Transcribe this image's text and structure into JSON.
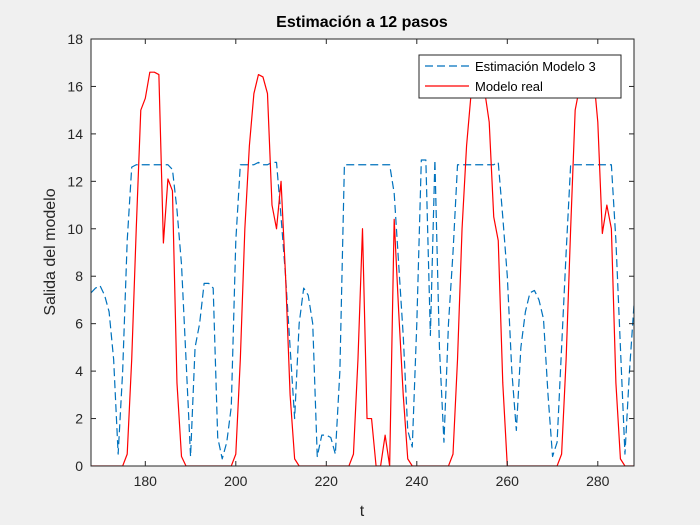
{
  "chart_data": {
    "type": "line",
    "title": "Estimación a 12 pasos",
    "xlabel": "t",
    "ylabel": "Salida del modelo",
    "xlim": [
      168,
      288
    ],
    "ylim": [
      0,
      18
    ],
    "xticks": [
      180,
      200,
      220,
      240,
      260,
      280
    ],
    "yticks": [
      0,
      2,
      4,
      6,
      8,
      10,
      12,
      14,
      16,
      18
    ],
    "grid": false,
    "legend_position": "top-right",
    "series": [
      {
        "name": "Estimación Modelo 3",
        "color": "#0072BD",
        "style": "dashed",
        "x": [
          168,
          169,
          170,
          171,
          172,
          173,
          174,
          175,
          176,
          177,
          178,
          179,
          180,
          181,
          182,
          183,
          184,
          185,
          186,
          187,
          188,
          189,
          190,
          191,
          192,
          193,
          194,
          195,
          196,
          197,
          198,
          199,
          200,
          201,
          202,
          203,
          204,
          205,
          206,
          207,
          208,
          209,
          210,
          211,
          212,
          213,
          214,
          215,
          216,
          217,
          218,
          219,
          220,
          221,
          222,
          223,
          224,
          225,
          226,
          227,
          228,
          229,
          230,
          231,
          232,
          233,
          234,
          235,
          236,
          237,
          238,
          239,
          240,
          241,
          242,
          243,
          244,
          245,
          246,
          247,
          248,
          249,
          250,
          251,
          252,
          253,
          254,
          255,
          256,
          257,
          258,
          259,
          260,
          261,
          262,
          263,
          264,
          265,
          266,
          267,
          268,
          269,
          270,
          271,
          272,
          273,
          274,
          275,
          276,
          277,
          278,
          279,
          280,
          281,
          282,
          283,
          284,
          285,
          286,
          287,
          288
        ],
        "y": [
          7.3,
          7.5,
          7.6,
          7.2,
          6.5,
          4.5,
          0.5,
          4.0,
          9.5,
          12.6,
          12.7,
          12.7,
          12.7,
          12.7,
          12.7,
          12.7,
          12.7,
          12.7,
          12.5,
          10.8,
          8.5,
          4.5,
          0.4,
          5.0,
          6.0,
          7.7,
          7.7,
          7.5,
          1.2,
          0.3,
          1.0,
          2.5,
          9.5,
          12.7,
          12.7,
          12.7,
          12.7,
          12.8,
          12.7,
          12.7,
          12.8,
          12.8,
          10.5,
          8.0,
          5.0,
          2.0,
          6.0,
          7.5,
          7.2,
          6.0,
          0.4,
          1.3,
          1.3,
          1.2,
          0.5,
          4.0,
          12.7,
          12.7,
          12.7,
          12.7,
          12.7,
          12.7,
          12.7,
          12.7,
          12.7,
          12.7,
          12.7,
          11.5,
          8.5,
          5.5,
          1.5,
          0.8,
          6.0,
          12.9,
          12.9,
          5.5,
          12.9,
          5.0,
          1.0,
          6.0,
          9.0,
          12.7,
          12.7,
          12.7,
          12.7,
          12.7,
          12.7,
          12.7,
          12.7,
          12.7,
          12.8,
          10.5,
          8.0,
          4.0,
          1.5,
          5.0,
          6.5,
          7.3,
          7.4,
          7.0,
          6.2,
          3.0,
          0.4,
          1.0,
          5.0,
          9.0,
          12.7,
          12.7,
          12.7,
          12.7,
          12.7,
          12.7,
          12.7,
          12.7,
          12.7,
          12.7,
          9.5,
          5.0,
          0.5,
          4.0,
          6.8
        ]
      },
      {
        "name": "Modelo real",
        "color": "#FF0000",
        "style": "solid",
        "x": [
          168,
          169,
          170,
          171,
          172,
          173,
          174,
          175,
          176,
          177,
          178,
          179,
          180,
          181,
          182,
          183,
          184,
          185,
          186,
          187,
          188,
          189,
          190,
          191,
          192,
          193,
          194,
          195,
          196,
          197,
          198,
          199,
          200,
          201,
          202,
          203,
          204,
          205,
          206,
          207,
          208,
          209,
          210,
          211,
          212,
          213,
          214,
          215,
          216,
          217,
          218,
          219,
          220,
          221,
          222,
          223,
          224,
          225,
          226,
          227,
          228,
          229,
          230,
          231,
          232,
          233,
          234,
          235,
          236,
          237,
          238,
          239,
          240,
          241,
          242,
          243,
          244,
          245,
          246,
          247,
          248,
          249,
          250,
          251,
          252,
          253,
          254,
          255,
          256,
          257,
          258,
          259,
          260,
          261,
          262,
          263,
          264,
          265,
          266,
          267,
          268,
          269,
          270,
          271,
          272,
          273,
          274,
          275,
          276,
          277,
          278,
          279,
          280,
          281,
          282,
          283,
          284,
          285,
          286,
          287,
          288
        ],
        "y": [
          0,
          0,
          0,
          0,
          0,
          0,
          0,
          0,
          0.5,
          4.5,
          10.0,
          15.0,
          15.5,
          16.6,
          16.6,
          16.5,
          9.4,
          12.1,
          11.6,
          3.5,
          0.4,
          0,
          0,
          0,
          0,
          0,
          0,
          0,
          0,
          0,
          0,
          0,
          0.5,
          4.5,
          10.0,
          13.5,
          15.7,
          16.5,
          16.4,
          15.7,
          11.0,
          10.0,
          12.0,
          8.0,
          3.0,
          0.3,
          0,
          0,
          0,
          0,
          0,
          0,
          0,
          0,
          0,
          0,
          0,
          0,
          0.5,
          4.5,
          10.0,
          2.0,
          2.0,
          0,
          0,
          1.3,
          0,
          10.4,
          6.5,
          3.0,
          0.3,
          0,
          0,
          0,
          0,
          0,
          0,
          0,
          0,
          0,
          0.5,
          4.5,
          10.0,
          13.5,
          15.7,
          16.6,
          16.5,
          15.8,
          14.5,
          10.5,
          9.5,
          3.5,
          0,
          0,
          0,
          0,
          0,
          0,
          0,
          0,
          0,
          0,
          0,
          0,
          0.5,
          4.5,
          10.0,
          15.0,
          16.0,
          16.7,
          16.6,
          16.6,
          14.5,
          9.8,
          11.0,
          10.0,
          3.5,
          0.3,
          0,
          0,
          0
        ]
      }
    ]
  }
}
